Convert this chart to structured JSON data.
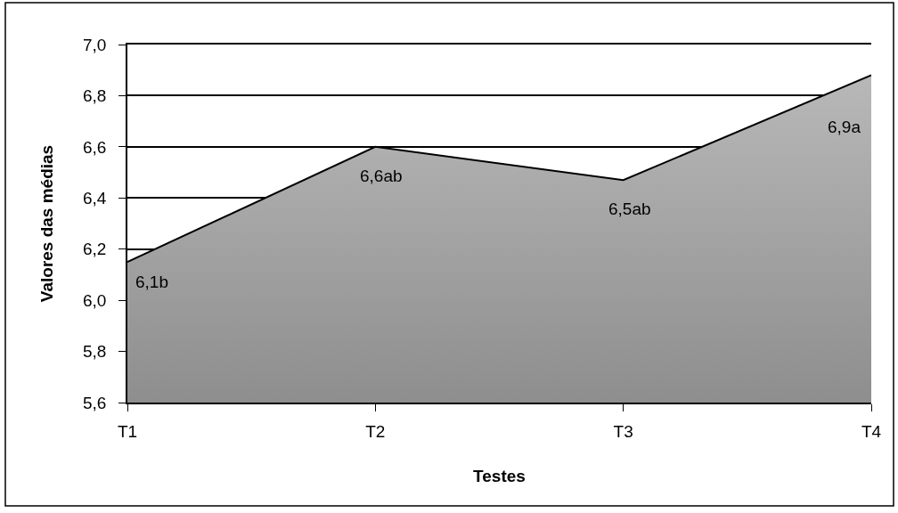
{
  "chart_data": {
    "type": "area",
    "xlabel": "Testes",
    "ylabel": "Valores das médias",
    "categories": [
      "T1",
      "T2",
      "T3",
      "T4"
    ],
    "series": [
      {
        "color": "#aaaaaa",
        "values": [
          6.15,
          6.6,
          6.47,
          6.88
        ],
        "value_labels": [
          "6,1b",
          "6,6ab",
          "6,5ab",
          "6,9a"
        ]
      }
    ],
    "ylim": [
      5.6,
      7.0
    ],
    "yticks": [
      {
        "value": 5.6,
        "label": "5,6"
      },
      {
        "value": 5.8,
        "label": "5,8"
      },
      {
        "value": 6.0,
        "label": "6,0"
      },
      {
        "value": 6.2,
        "label": "6,2"
      },
      {
        "value": 6.4,
        "label": "6,4"
      },
      {
        "value": 6.6,
        "label": "6,6"
      },
      {
        "value": 6.8,
        "label": "6,8"
      },
      {
        "value": 7.0,
        "label": "7,0"
      }
    ],
    "grid": "y"
  }
}
